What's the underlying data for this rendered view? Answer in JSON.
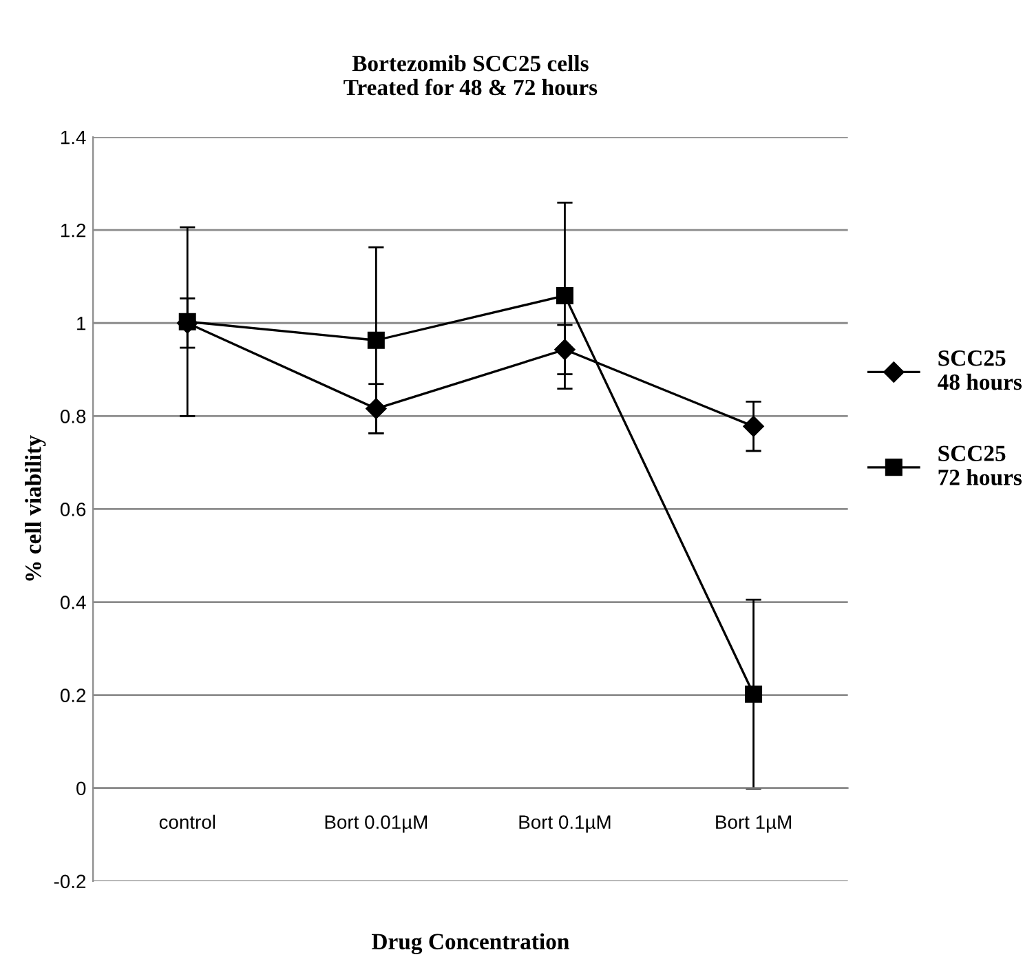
{
  "chart_data": {
    "type": "line",
    "title": "Bortezomib SCC25 cells\nTreated for 48 & 72 hours",
    "xlabel": "Drug Concentration",
    "ylabel": "% cell viability",
    "categories": [
      "control",
      "Bort 0.01µM",
      "Bort 0.1µM",
      "Bort 1µM"
    ],
    "series": [
      {
        "name": "SCC25\n48 hours",
        "color": "#000000",
        "marker": "diamond",
        "values": [
          1.0,
          0.816,
          0.943,
          0.778
        ],
        "errors": [
          0.053,
          0.053,
          0.053,
          0.053
        ]
      },
      {
        "name": "SCC25\n72 hours",
        "color": "#000000",
        "marker": "square",
        "values": [
          1.003,
          0.963,
          1.059,
          0.202
        ],
        "errors": [
          0.203,
          0.2,
          0.2,
          0.203
        ]
      }
    ],
    "ylim": [
      -0.2,
      1.4
    ],
    "yticks": [
      -0.2,
      0,
      0.2,
      0.4,
      0.6,
      0.8,
      1,
      1.2,
      1.4
    ],
    "grid": "y",
    "legend": "right",
    "line_style": "solid"
  }
}
